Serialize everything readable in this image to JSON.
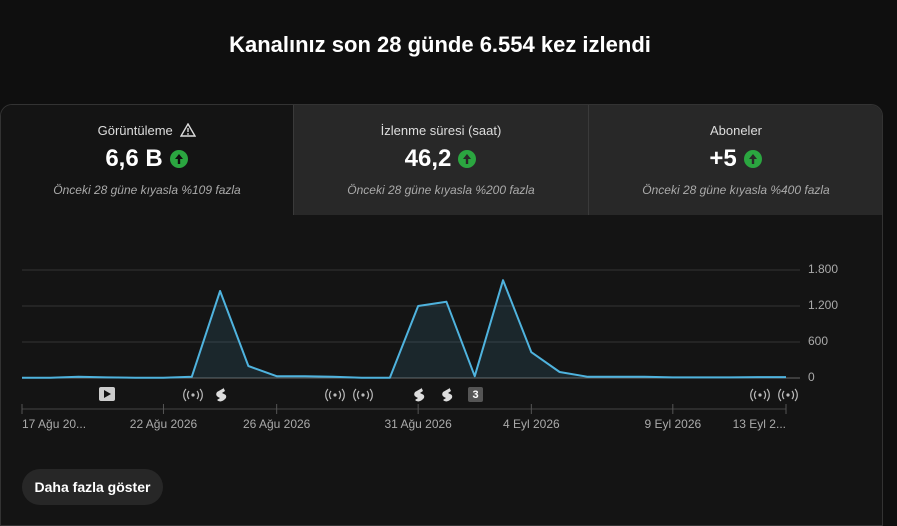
{
  "header": {
    "title": "Kanalınız son 28 günde 6.554 kez izlendi"
  },
  "cards": [
    {
      "label": "Görüntüleme",
      "value": "6,6 B",
      "note": "Önceki 28 güne kıyasla %109 fazla"
    },
    {
      "label": "İzlenme süresi (saat)",
      "value": "46,2",
      "note": "Önceki 28 güne kıyasla %200 fazla"
    },
    {
      "label": "Aboneler",
      "value": "+5",
      "note": "Önceki 28 güne kıyasla %400 fazla"
    }
  ],
  "chart_data": {
    "type": "line",
    "color": "#4fb3de",
    "categories": [
      "17 Ağu 20...",
      null,
      null,
      null,
      null,
      "22 Ağu 2026",
      null,
      null,
      null,
      "26 Ağu 2026",
      null,
      null,
      null,
      null,
      "31 Ağu 2026",
      null,
      null,
      null,
      "4 Eyl 2026",
      null,
      null,
      null,
      null,
      "9 Eyl 2026",
      null,
      null,
      null,
      "13 Eyl 2..."
    ],
    "values": [
      5,
      5,
      20,
      10,
      5,
      5,
      20,
      1450,
      200,
      30,
      30,
      20,
      5,
      5,
      1200,
      1270,
      30,
      1630,
      430,
      100,
      20,
      20,
      20,
      10,
      10,
      10,
      15,
      15
    ],
    "ylim": [
      0,
      1800
    ],
    "yticks": [
      0,
      600,
      {
        "value": 1200,
        "label": "1.200"
      },
      {
        "value": 1800,
        "label": "1.800"
      }
    ],
    "grid": true
  },
  "timeline": {
    "badge": "3"
  },
  "button": {
    "label": "Daha fazla göster"
  }
}
